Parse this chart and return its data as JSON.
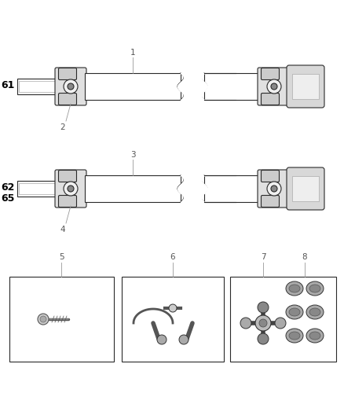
{
  "bg_color": "#ffffff",
  "line_color": "#2a2a2a",
  "label_color": "#666666",
  "bold_label_color": "#000000",
  "fig_width": 4.38,
  "fig_height": 5.33,
  "dpi": 100
}
